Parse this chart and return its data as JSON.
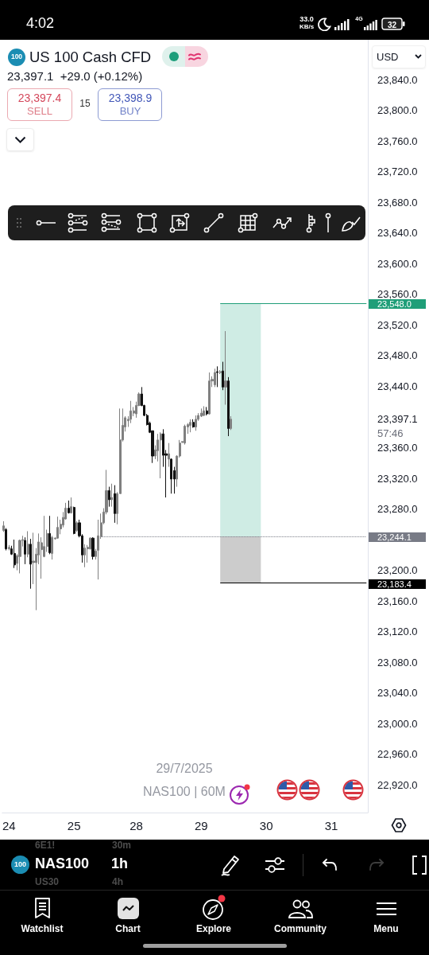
{
  "chart_data": {
    "type": "candlestick",
    "title": "US 100 Cash CFD",
    "subtitle": "23,397.1  +29.0 (+0.12%)",
    "categories": [
      null,
      null,
      "24",
      null,
      null,
      null,
      null,
      null,
      null,
      null,
      null,
      null,
      null,
      null,
      null,
      null,
      null,
      null,
      null,
      null,
      null,
      null,
      null,
      null,
      null,
      null,
      "25",
      null,
      null,
      null,
      null,
      null,
      null,
      null,
      null,
      null,
      null,
      null,
      null,
      null,
      null,
      null,
      null,
      null,
      null,
      null,
      null,
      null,
      null,
      "28",
      null,
      null,
      null,
      null,
      null,
      null,
      null,
      null,
      null,
      null,
      null,
      null,
      null,
      null,
      null,
      null,
      null,
      null,
      null,
      null,
      null,
      null,
      null,
      "29",
      null,
      null,
      null,
      null,
      null,
      null,
      null,
      null,
      null,
      null,
      null,
      null,
      null,
      null,
      null,
      null,
      null,
      null,
      null,
      null,
      null,
      null,
      null,
      "30",
      null,
      null,
      null,
      null,
      null,
      null,
      null,
      null,
      null,
      null,
      null,
      null,
      null,
      null,
      null,
      null,
      null,
      null,
      null,
      null,
      null,
      null,
      null,
      "31",
      null,
      null,
      null,
      null,
      null,
      null,
      null,
      null,
      null,
      null,
      null,
      null,
      null
    ],
    "ohlc": [
      [
        23252,
        23264,
        23250,
        23258
      ],
      [
        23253,
        23255,
        23226,
        23228
      ],
      [
        23228,
        23233,
        23226,
        23230
      ],
      [
        23228,
        23232,
        23220,
        23221
      ],
      [
        23222,
        23240,
        23203,
        23207
      ],
      [
        23209,
        23221,
        23200,
        23219
      ],
      [
        23218,
        23240,
        23196,
        23239
      ],
      [
        23239,
        23245,
        23231,
        23240
      ],
      [
        23239,
        23243,
        23208,
        23221
      ],
      [
        23221,
        23251,
        23217,
        23234
      ],
      [
        23234,
        23241,
        23176,
        23208
      ],
      [
        23210,
        23249,
        23182,
        23212
      ],
      [
        23210,
        23229,
        23148,
        23221
      ],
      [
        23220,
        23248,
        23208,
        23237
      ],
      [
        23227,
        23243,
        23189,
        23236
      ],
      [
        23218,
        23271,
        23217,
        23231
      ],
      [
        23231,
        23253,
        23224,
        23248
      ],
      [
        23248,
        23271,
        23221,
        23223
      ],
      [
        23222,
        23245,
        23214,
        23243
      ],
      [
        23241,
        23243,
        23240,
        23242
      ],
      [
        23242,
        23270,
        23241,
        23256
      ],
      [
        23254,
        23266,
        23247,
        23260
      ],
      [
        23259,
        23276,
        23256,
        23269
      ],
      [
        23267,
        23288,
        23266,
        23281
      ],
      [
        23281,
        23291,
        23274,
        23275
      ],
      [
        23275,
        23295,
        23274,
        23283
      ],
      [
        23282,
        23283,
        23247,
        23248
      ],
      [
        23252,
        23264,
        23250,
        23262
      ],
      [
        23262,
        23266,
        23243,
        23245
      ],
      [
        23245,
        23247,
        23210,
        23220
      ],
      [
        23220,
        23234,
        23204,
        23229
      ],
      [
        23228,
        23233,
        23210,
        23230
      ],
      [
        23228,
        23243,
        23227,
        23242
      ],
      [
        23242,
        23243,
        23214,
        23218
      ],
      [
        23218,
        23228,
        23214,
        23225
      ],
      [
        23226,
        23266,
        23188,
        23245
      ],
      [
        23244,
        23274,
        23241,
        23262
      ],
      [
        23262,
        23281,
        23260,
        23276
      ],
      [
        23276,
        23331,
        23273,
        23304
      ],
      [
        23304,
        23309,
        23283,
        23292
      ],
      [
        23292,
        23313,
        23283,
        23295
      ],
      [
        23300,
        23311,
        23262,
        23274
      ],
      [
        23274,
        23302,
        23260,
        23300
      ],
      [
        23300,
        23411,
        23300,
        23370
      ],
      [
        23370,
        23411,
        23368,
        23389
      ],
      [
        23387,
        23401,
        23381,
        23399
      ],
      [
        23395,
        23401,
        23387,
        23397
      ],
      [
        23397,
        23421,
        23392,
        23408
      ],
      [
        23405,
        23413,
        23401,
        23408
      ],
      [
        23404,
        23420,
        23399,
        23415
      ],
      [
        23415,
        23432,
        23414,
        23430
      ],
      [
        23430,
        23439,
        23414,
        23415
      ],
      [
        23415,
        23416,
        23401,
        23402
      ],
      [
        23402,
        23404,
        23389,
        23390
      ],
      [
        23392,
        23394,
        23379,
        23380
      ],
      [
        23382,
        23382,
        23340,
        23349
      ],
      [
        23349,
        23363,
        23345,
        23357
      ],
      [
        23356,
        23378,
        23342,
        23370
      ],
      [
        23370,
        23380,
        23320,
        23378
      ],
      [
        23378,
        23384,
        23335,
        23350
      ],
      [
        23352,
        23357,
        23295,
        23350
      ],
      [
        23345,
        23366,
        23335,
        23352
      ],
      [
        23345,
        23346,
        23300,
        23319
      ],
      [
        23330,
        23335,
        23300,
        23319
      ],
      [
        23319,
        23350,
        23309,
        23349
      ],
      [
        23349,
        23370,
        23347,
        23366
      ],
      [
        23367,
        23368,
        23366,
        23368
      ],
      [
        23366,
        23390,
        23364,
        23388
      ],
      [
        23387,
        23392,
        23378,
        23390
      ],
      [
        23389,
        23397,
        23380,
        23393
      ],
      [
        23393,
        23397,
        23386,
        23387
      ],
      [
        23387,
        23402,
        23382,
        23397
      ],
      [
        23397,
        23405,
        23395,
        23402
      ],
      [
        23401,
        23411,
        23400,
        23405
      ],
      [
        23402,
        23414,
        23401,
        23408
      ],
      [
        23408,
        23413,
        23402,
        23404
      ],
      [
        23404,
        23458,
        23403,
        23447
      ],
      [
        23447,
        23453,
        23439,
        23449
      ],
      [
        23442,
        23463,
        23439,
        23458
      ],
      [
        23459,
        23466,
        23439,
        23458
      ],
      [
        23458,
        23461,
        23456,
        23459
      ],
      [
        23460,
        23472,
        23435,
        23439
      ],
      [
        23439,
        23512,
        23416,
        23447
      ],
      [
        23447,
        23452,
        23375,
        23385
      ],
      [
        23385,
        23401,
        23383,
        23397.1
      ],
      null,
      null,
      null,
      null,
      null,
      null,
      null,
      null,
      null,
      null,
      null,
      null,
      null,
      null,
      null,
      null,
      null,
      null,
      null,
      null,
      null,
      null,
      null,
      null,
      null,
      null,
      null,
      null,
      null,
      null,
      null,
      null,
      null,
      null,
      null,
      null,
      null,
      null,
      null,
      null,
      null,
      null,
      null,
      null,
      null,
      null,
      null,
      null,
      null,
      null
    ],
    "colors": [
      "#808080",
      "#111111",
      "#808080",
      "#111111",
      "#111111",
      "#808080",
      "#808080",
      "#808080",
      "#111111",
      "#808080",
      "#111111",
      "#808080",
      "#808080",
      "#808080",
      "#808080",
      "#808080",
      "#808080",
      "#111111",
      "#808080",
      "#808080",
      "#808080",
      "#808080",
      "#808080",
      "#808080",
      "#111111",
      "#808080",
      "#111111",
      "#808080",
      "#111111",
      "#111111",
      "#808080",
      "#808080",
      "#808080",
      "#111111",
      "#808080",
      "#808080",
      "#808080",
      "#808080",
      "#808080",
      "#111111",
      "#808080",
      "#111111",
      "#808080",
      "#808080",
      "#808080",
      "#808080",
      "#808080",
      "#808080",
      "#808080",
      "#808080",
      "#808080",
      "#111111",
      "#111111",
      "#111111",
      "#111111",
      "#111111",
      "#808080",
      "#808080",
      "#808080",
      "#111111",
      "#111111",
      "#808080",
      "#111111",
      "#111111",
      "#808080",
      "#808080",
      "#808080",
      "#808080",
      "#808080",
      "#808080",
      "#111111",
      "#808080",
      "#808080",
      "#808080",
      "#808080",
      "#111111",
      "#808080",
      "#808080",
      "#808080",
      "#111111",
      "#808080",
      "#111111",
      "#808080",
      "#111111",
      "#808080",
      null,
      null,
      null,
      null,
      null,
      null,
      null,
      null,
      null,
      null,
      null,
      null,
      null,
      null,
      null,
      null,
      null,
      null,
      null,
      null,
      null,
      null,
      null,
      null,
      null,
      null,
      null,
      null,
      null,
      null,
      null,
      null,
      null,
      null,
      null,
      null,
      null,
      null,
      null,
      null,
      null,
      null,
      null,
      null,
      null,
      null,
      null,
      null,
      null,
      null
    ],
    "ylim": [
      22884,
      23892
    ],
    "yticks": [
      {
        "value": 22920,
        "label": "22,920.0"
      },
      {
        "value": 22960,
        "label": "22,960.0"
      },
      {
        "value": 23000,
        "label": "23,000.0"
      },
      {
        "value": 23040,
        "label": "23,040.0"
      },
      {
        "value": 23080,
        "label": "23,080.0"
      },
      {
        "value": 23120,
        "label": "23,120.0"
      },
      {
        "value": 23160,
        "label": "23,160.0"
      },
      {
        "value": 23200,
        "label": "23,200.0"
      },
      {
        "value": 23280,
        "label": "23,280.0"
      },
      {
        "value": 23320,
        "label": "23,320.0"
      },
      {
        "value": 23360,
        "label": "23,360.0"
      },
      {
        "value": 23397.1,
        "label": "23,397.1"
      },
      {
        "value": 23440,
        "label": "23,440.0"
      },
      {
        "value": 23480,
        "label": "23,480.0"
      },
      {
        "value": 23520,
        "label": "23,520.0"
      },
      {
        "value": 23560,
        "label": "23,560.0"
      },
      {
        "value": 23600,
        "label": "23,600.0"
      },
      {
        "value": 23640,
        "label": "23,640.0"
      },
      {
        "value": 23680,
        "label": "23,680.0"
      },
      {
        "value": 23720,
        "label": "23,720.0"
      },
      {
        "value": 23760,
        "label": "23,760.0"
      },
      {
        "value": 23800,
        "label": "23,800.0"
      },
      {
        "value": 23840,
        "label": "23,840.0"
      }
    ],
    "bands": [
      {
        "axis": "y",
        "from": 23244.1,
        "to": 23548.0,
        "color": "#cfece4"
      },
      {
        "axis": "y",
        "from": 23183.4,
        "to": 23244.1,
        "color": "#cccccc"
      }
    ],
    "ref_lines": [
      {
        "axis": "y",
        "value": 23548.0,
        "label": "23,548.0",
        "color": "#1f9e78"
      },
      {
        "axis": "y",
        "value": 23244.1,
        "label": "23,244.1",
        "color": "#787b86",
        "line_style": "dotted"
      },
      {
        "axis": "y",
        "value": 23183.4,
        "label": "23,183.4",
        "color": "#000000"
      }
    ],
    "annotations": [
      "4:02",
      "33.0",
      "KB/s",
      "4G",
      "32",
      "100",
      "23,397.4",
      "SELL",
      "15",
      "23,398.9",
      "BUY",
      "USD",
      "57:46",
      "29/7/2025",
      "NAS100 | 60M",
      "6E1!",
      "30m",
      "100",
      "NAS100",
      "1h",
      "US30",
      "4h",
      "Watchlist",
      "Chart",
      "Explore",
      "Community",
      "Menu"
    ]
  }
}
